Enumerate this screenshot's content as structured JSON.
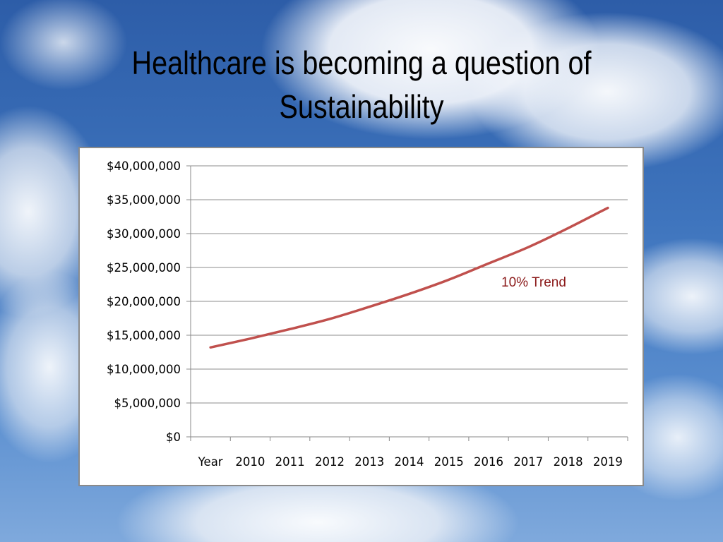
{
  "slide": {
    "title_line1": "Healthcare is becoming a question of",
    "title_line2": "Sustainability"
  },
  "chart_data": {
    "type": "line",
    "categories": [
      "Year",
      "2010",
      "2011",
      "2012",
      "2013",
      "2014",
      "2015",
      "2016",
      "2017",
      "2018",
      "2019"
    ],
    "series": [
      {
        "values": [
          13200000,
          14500000,
          15900000,
          17400000,
          19200000,
          21100000,
          23200000,
          25600000,
          28000000,
          30800000,
          33800000
        ],
        "color": "#c0504d"
      }
    ],
    "ylim": [
      0,
      40000000
    ],
    "yticks": [
      0,
      5000000,
      10000000,
      15000000,
      20000000,
      25000000,
      30000000,
      35000000,
      40000000
    ],
    "ytick_labels": [
      "$0",
      "$5,000,000",
      "$10,000,000",
      "$15,000,000",
      "$20,000,000",
      "$25,000,000",
      "$30,000,000",
      "$35,000,000",
      "$40,000,000"
    ],
    "annotation": "10% Trend",
    "annotation_color": "#8b1a1a",
    "grid": true,
    "legend": "none"
  }
}
